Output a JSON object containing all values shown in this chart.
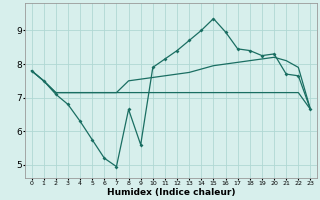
{
  "xlabel": "Humidex (Indice chaleur)",
  "x_values": [
    0,
    1,
    2,
    3,
    4,
    5,
    6,
    7,
    8,
    9,
    10,
    11,
    12,
    13,
    14,
    15,
    16,
    17,
    18,
    19,
    20,
    21,
    22,
    23
  ],
  "line1_y": [
    7.8,
    7.5,
    7.1,
    6.8,
    6.3,
    5.75,
    5.2,
    4.95,
    6.65,
    5.6,
    7.9,
    8.15,
    8.4,
    8.7,
    9.0,
    9.35,
    8.95,
    8.45,
    8.4,
    8.25,
    8.3,
    7.7,
    7.65,
    6.65
  ],
  "line2_y": [
    7.8,
    7.5,
    7.15,
    7.15,
    7.15,
    7.15,
    7.15,
    7.15,
    7.5,
    7.55,
    7.6,
    7.65,
    7.7,
    7.75,
    7.85,
    7.95,
    8.0,
    8.05,
    8.1,
    8.15,
    8.2,
    8.1,
    7.9,
    6.65
  ],
  "line3_y": [
    7.8,
    7.5,
    7.15,
    7.15,
    7.15,
    7.15,
    7.15,
    7.15,
    7.15,
    7.15,
    7.15,
    7.15,
    7.15,
    7.15,
    7.15,
    7.15,
    7.15,
    7.15,
    7.15,
    7.15,
    7.15,
    7.15,
    7.15,
    6.65
  ],
  "line_color": "#1a6e62",
  "bg_color": "#d7efec",
  "grid_color": "#b0d8d3",
  "ylim": [
    4.6,
    9.8
  ],
  "yticks": [
    5,
    6,
    7,
    8,
    9
  ],
  "xlim": [
    -0.5,
    23.5
  ]
}
